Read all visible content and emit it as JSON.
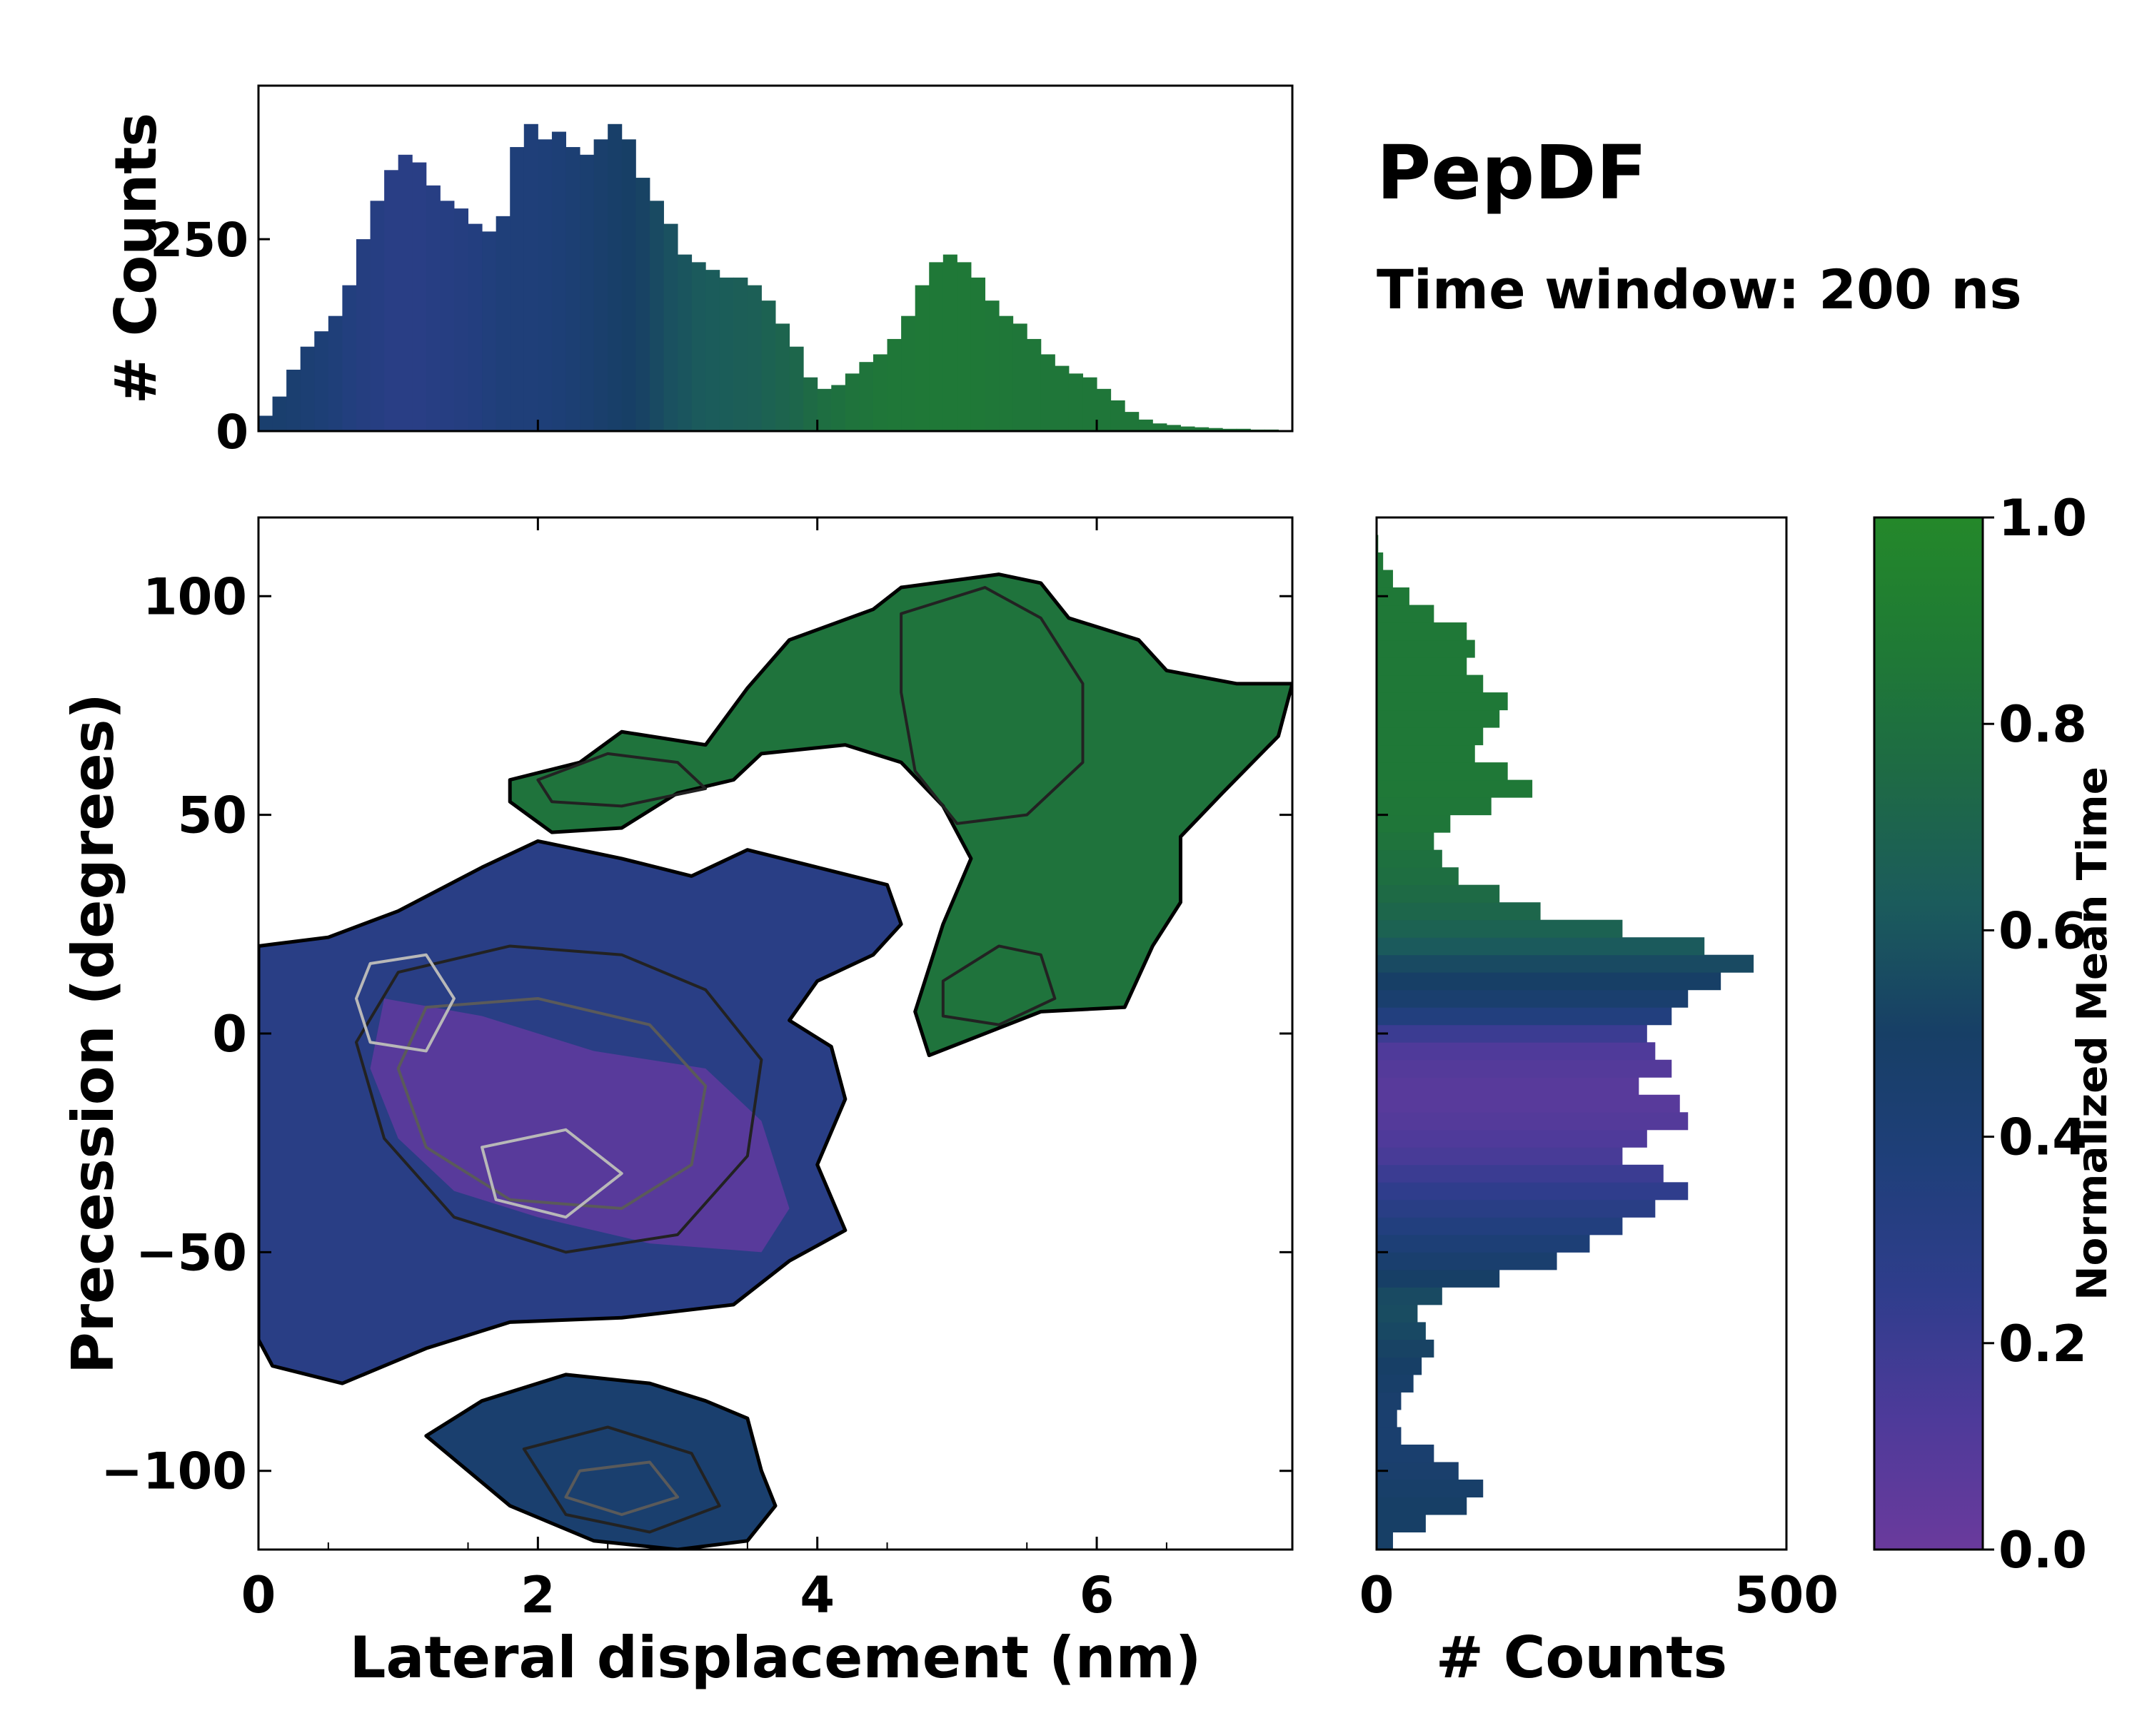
{
  "figure": {
    "title": "PepDF",
    "subtitle": "Time window: 200 ns"
  },
  "colors": {
    "cmap": [
      "#6a3a9c",
      "#4e3a9a",
      "#2f3d8c",
      "#1f3f7a",
      "#173f66",
      "#1b5b5c",
      "#1e6a45",
      "#1f7a35",
      "#24882a"
    ],
    "contour_dark": "#222222",
    "contour_mid": "#5a5a5a",
    "contour_light": "#b8b8b8"
  },
  "chart_data": [
    {
      "id": "joint",
      "type": "heatmap",
      "xlabel": "Lateral displacement (nm)",
      "ylabel": "Precession (degrees)",
      "xlim": [
        0,
        7.4
      ],
      "ylim": [
        -118,
        118
      ],
      "xticks": [
        "0",
        "2",
        "4",
        "6"
      ],
      "xtick_values": [
        0,
        2,
        4,
        6
      ],
      "yticks": [
        "−100",
        "−50",
        "0",
        "50",
        "100"
      ],
      "ytick_values": [
        -100,
        -50,
        0,
        50,
        100
      ],
      "regions": [
        {
          "name": "upper-band",
          "time": 0.82,
          "polygon": [
            [
              1.8,
              58
            ],
            [
              2.3,
              62
            ],
            [
              2.6,
              69
            ],
            [
              3.2,
              66
            ],
            [
              3.5,
              79
            ],
            [
              3.8,
              90
            ],
            [
              4.4,
              97
            ],
            [
              4.6,
              102
            ],
            [
              5.3,
              105
            ],
            [
              5.6,
              103
            ],
            [
              5.8,
              95
            ],
            [
              6.3,
              90
            ],
            [
              6.5,
              83
            ],
            [
              7.0,
              80
            ],
            [
              7.4,
              80
            ],
            [
              7.3,
              68
            ],
            [
              6.9,
              55
            ],
            [
              6.6,
              45
            ],
            [
              6.6,
              30
            ],
            [
              6.4,
              20
            ],
            [
              6.2,
              6
            ],
            [
              5.6,
              5
            ],
            [
              4.8,
              -5
            ],
            [
              4.7,
              5
            ],
            [
              4.9,
              25
            ],
            [
              5.1,
              40
            ],
            [
              4.9,
              52
            ],
            [
              4.6,
              62
            ],
            [
              4.2,
              66
            ],
            [
              3.6,
              64
            ],
            [
              3.4,
              58
            ],
            [
              3.0,
              55
            ],
            [
              2.6,
              47
            ],
            [
              2.1,
              46
            ],
            [
              1.8,
              53
            ]
          ]
        },
        {
          "name": "main-cluster",
          "time": 0.3,
          "polygon": [
            [
              0,
              20
            ],
            [
              0.5,
              22
            ],
            [
              1.0,
              28
            ],
            [
              1.6,
              38
            ],
            [
              2.0,
              44
            ],
            [
              2.6,
              40
            ],
            [
              3.1,
              36
            ],
            [
              3.5,
              42
            ],
            [
              4.0,
              38
            ],
            [
              4.5,
              34
            ],
            [
              4.6,
              25
            ],
            [
              4.4,
              18
            ],
            [
              4.0,
              12
            ],
            [
              3.8,
              3
            ],
            [
              4.1,
              -3
            ],
            [
              4.2,
              -15
            ],
            [
              4.0,
              -30
            ],
            [
              4.2,
              -45
            ],
            [
              3.8,
              -52
            ],
            [
              3.4,
              -62
            ],
            [
              2.6,
              -65
            ],
            [
              1.8,
              -66
            ],
            [
              1.2,
              -72
            ],
            [
              0.6,
              -80
            ],
            [
              0.1,
              -76
            ],
            [
              0,
              -70
            ]
          ]
        },
        {
          "name": "lower-lobe",
          "time": 0.45,
          "polygon": [
            [
              1.2,
              -92
            ],
            [
              1.6,
              -84
            ],
            [
              2.2,
              -78
            ],
            [
              2.8,
              -80
            ],
            [
              3.2,
              -84
            ],
            [
              3.5,
              -88
            ],
            [
              3.6,
              -100
            ],
            [
              3.7,
              -108
            ],
            [
              3.5,
              -116
            ],
            [
              3.0,
              -118
            ],
            [
              2.4,
              -116
            ],
            [
              1.8,
              -108
            ],
            [
              1.5,
              -100
            ]
          ]
        },
        {
          "name": "purple-core",
          "time": 0.08,
          "polygon": [
            [
              0.9,
              8
            ],
            [
              1.6,
              4
            ],
            [
              2.4,
              -4
            ],
            [
              3.2,
              -8
            ],
            [
              3.6,
              -20
            ],
            [
              3.8,
              -40
            ],
            [
              3.6,
              -50
            ],
            [
              2.8,
              -48
            ],
            [
              2.0,
              -42
            ],
            [
              1.4,
              -36
            ],
            [
              1.0,
              -24
            ],
            [
              0.8,
              -8
            ]
          ]
        }
      ],
      "contours": [
        {
          "level": "dark",
          "points": [
            [
              1.0,
              14
            ],
            [
              1.8,
              20
            ],
            [
              2.6,
              18
            ],
            [
              3.2,
              10
            ],
            [
              3.6,
              -6
            ],
            [
              3.5,
              -28
            ],
            [
              3.0,
              -46
            ],
            [
              2.2,
              -50
            ],
            [
              1.4,
              -42
            ],
            [
              0.9,
              -24
            ],
            [
              0.7,
              -2
            ]
          ]
        },
        {
          "level": "dark",
          "points": [
            [
              2.0,
              58
            ],
            [
              2.5,
              64
            ],
            [
              3.0,
              62
            ],
            [
              3.2,
              56
            ],
            [
              2.6,
              52
            ],
            [
              2.1,
              53
            ]
          ]
        },
        {
          "level": "dark",
          "points": [
            [
              4.6,
              96
            ],
            [
              5.2,
              102
            ],
            [
              5.6,
              95
            ],
            [
              5.9,
              80
            ],
            [
              5.9,
              62
            ],
            [
              5.5,
              50
            ],
            [
              5.0,
              48
            ],
            [
              4.7,
              60
            ],
            [
              4.6,
              78
            ]
          ]
        },
        {
          "level": "dark",
          "points": [
            [
              4.9,
              12
            ],
            [
              5.3,
              20
            ],
            [
              5.6,
              18
            ],
            [
              5.7,
              8
            ],
            [
              5.3,
              2
            ],
            [
              4.9,
              4
            ]
          ]
        },
        {
          "level": "dark",
          "points": [
            [
              1.9,
              -95
            ],
            [
              2.5,
              -90
            ],
            [
              3.1,
              -96
            ],
            [
              3.3,
              -108
            ],
            [
              2.8,
              -114
            ],
            [
              2.2,
              -110
            ]
          ]
        },
        {
          "level": "mid",
          "points": [
            [
              1.2,
              6
            ],
            [
              2.0,
              8
            ],
            [
              2.8,
              2
            ],
            [
              3.2,
              -12
            ],
            [
              3.1,
              -30
            ],
            [
              2.6,
              -40
            ],
            [
              1.8,
              -38
            ],
            [
              1.2,
              -26
            ],
            [
              1.0,
              -8
            ]
          ]
        },
        {
          "level": "mid",
          "points": [
            [
              2.3,
              -100
            ],
            [
              2.8,
              -98
            ],
            [
              3.0,
              -106
            ],
            [
              2.6,
              -110
            ],
            [
              2.2,
              -106
            ]
          ]
        },
        {
          "level": "light",
          "points": [
            [
              0.8,
              16
            ],
            [
              1.2,
              18
            ],
            [
              1.4,
              8
            ],
            [
              1.2,
              -4
            ],
            [
              0.8,
              -2
            ],
            [
              0.7,
              8
            ]
          ]
        },
        {
          "level": "light",
          "points": [
            [
              1.6,
              -26
            ],
            [
              2.2,
              -22
            ],
            [
              2.6,
              -32
            ],
            [
              2.2,
              -42
            ],
            [
              1.7,
              -38
            ]
          ]
        }
      ]
    },
    {
      "id": "top-hist",
      "type": "bar",
      "ylabel": "# Counts",
      "xlim": [
        0,
        7.4
      ],
      "ylim": [
        0,
        450
      ],
      "yticks": [
        "0",
        "250"
      ],
      "ytick_values": [
        0,
        250
      ],
      "bin_width": 0.1,
      "x": [
        0.05,
        0.15,
        0.25,
        0.35,
        0.45,
        0.55,
        0.65,
        0.75,
        0.85,
        0.95,
        1.05,
        1.15,
        1.25,
        1.35,
        1.45,
        1.55,
        1.65,
        1.75,
        1.85,
        1.95,
        2.05,
        2.15,
        2.25,
        2.35,
        2.45,
        2.55,
        2.65,
        2.75,
        2.85,
        2.95,
        3.05,
        3.15,
        3.25,
        3.35,
        3.45,
        3.55,
        3.65,
        3.75,
        3.85,
        3.95,
        4.05,
        4.15,
        4.25,
        4.35,
        4.45,
        4.55,
        4.65,
        4.75,
        4.85,
        4.95,
        5.05,
        5.15,
        5.25,
        5.35,
        5.45,
        5.55,
        5.65,
        5.75,
        5.85,
        5.95,
        6.05,
        6.15,
        6.25,
        6.35,
        6.45,
        6.55,
        6.65,
        6.75,
        6.85,
        6.95,
        7.05,
        7.15,
        7.25,
        7.35
      ],
      "values": [
        20,
        45,
        80,
        110,
        130,
        150,
        190,
        250,
        300,
        340,
        360,
        350,
        320,
        300,
        290,
        270,
        260,
        280,
        370,
        400,
        380,
        390,
        370,
        360,
        380,
        400,
        380,
        330,
        300,
        270,
        230,
        220,
        210,
        200,
        200,
        190,
        170,
        140,
        110,
        70,
        55,
        60,
        75,
        90,
        100,
        120,
        150,
        190,
        220,
        230,
        220,
        200,
        170,
        150,
        140,
        120,
        100,
        85,
        75,
        70,
        55,
        40,
        25,
        15,
        10,
        8,
        6,
        5,
        4,
        3,
        3,
        2,
        2,
        1
      ],
      "time_values": [
        0.45,
        0.45,
        0.44,
        0.42,
        0.4,
        0.38,
        0.35,
        0.33,
        0.32,
        0.3,
        0.3,
        0.3,
        0.31,
        0.32,
        0.33,
        0.34,
        0.36,
        0.38,
        0.38,
        0.38,
        0.39,
        0.4,
        0.42,
        0.44,
        0.46,
        0.48,
        0.5,
        0.52,
        0.55,
        0.58,
        0.6,
        0.62,
        0.63,
        0.64,
        0.65,
        0.66,
        0.68,
        0.7,
        0.72,
        0.75,
        0.78,
        0.8,
        0.82,
        0.83,
        0.84,
        0.85,
        0.85,
        0.86,
        0.86,
        0.86,
        0.86,
        0.86,
        0.85,
        0.85,
        0.84,
        0.84,
        0.84,
        0.84,
        0.84,
        0.84,
        0.84,
        0.84,
        0.84,
        0.84,
        0.84,
        0.84,
        0.84,
        0.84,
        0.84,
        0.84,
        0.84,
        0.84,
        0.84,
        0.84
      ]
    },
    {
      "id": "right-hist",
      "type": "bar",
      "orientation": "horizontal",
      "xlabel": "# Counts",
      "xlim": [
        0,
        500
      ],
      "ylim": [
        -118,
        118
      ],
      "xticks": [
        "0",
        "500"
      ],
      "xtick_values": [
        0,
        500
      ],
      "bin_width": 4,
      "y": [
        -116,
        -112,
        -108,
        -104,
        -100,
        -96,
        -92,
        -88,
        -84,
        -80,
        -76,
        -72,
        -68,
        -64,
        -60,
        -56,
        -52,
        -48,
        -44,
        -40,
        -36,
        -32,
        -28,
        -24,
        -20,
        -16,
        -12,
        -8,
        -4,
        0,
        4,
        8,
        12,
        16,
        20,
        24,
        28,
        32,
        36,
        40,
        44,
        48,
        52,
        56,
        60,
        64,
        68,
        72,
        76,
        80,
        84,
        88,
        92,
        96,
        100,
        104,
        108,
        112,
        116
      ],
      "values": [
        20,
        60,
        110,
        130,
        100,
        70,
        30,
        25,
        30,
        45,
        55,
        70,
        60,
        50,
        80,
        150,
        220,
        260,
        300,
        340,
        380,
        350,
        300,
        330,
        380,
        370,
        320,
        360,
        340,
        330,
        360,
        380,
        420,
        460,
        400,
        300,
        200,
        150,
        100,
        80,
        70,
        90,
        140,
        190,
        160,
        120,
        130,
        150,
        160,
        130,
        110,
        120,
        110,
        70,
        40,
        20,
        8,
        2,
        1
      ],
      "time_values": [
        0.5,
        0.5,
        0.5,
        0.48,
        0.46,
        0.45,
        0.45,
        0.45,
        0.46,
        0.48,
        0.5,
        0.52,
        0.54,
        0.56,
        0.55,
        0.5,
        0.45,
        0.4,
        0.35,
        0.3,
        0.25,
        0.2,
        0.15,
        0.12,
        0.1,
        0.08,
        0.08,
        0.1,
        0.12,
        0.2,
        0.35,
        0.45,
        0.5,
        0.55,
        0.62,
        0.68,
        0.72,
        0.75,
        0.78,
        0.8,
        0.82,
        0.84,
        0.85,
        0.86,
        0.86,
        0.86,
        0.86,
        0.86,
        0.86,
        0.86,
        0.86,
        0.86,
        0.86,
        0.86,
        0.86,
        0.86,
        0.86,
        0.86,
        0.86
      ]
    },
    {
      "id": "colorbar",
      "type": "colorbar",
      "label": "Normalized Mean Time",
      "lim": [
        0,
        1
      ],
      "ticks": [
        "0.0",
        "0.2",
        "0.4",
        "0.6",
        "0.8",
        "1.0"
      ],
      "tick_values": [
        0,
        0.2,
        0.4,
        0.6,
        0.8,
        1.0
      ]
    }
  ]
}
